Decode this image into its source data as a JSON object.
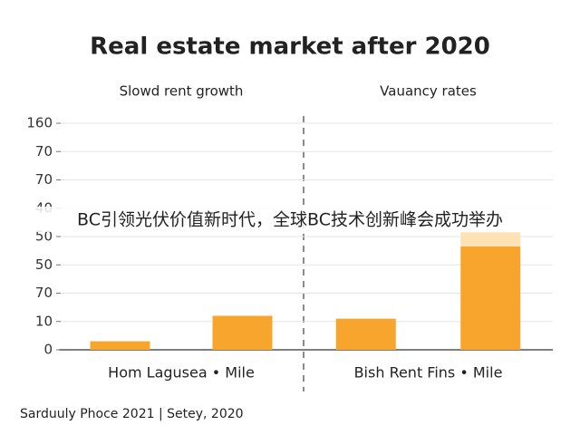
{
  "chart_data": {
    "type": "bar",
    "title": "Real estate market after 2020",
    "ylim": [
      0,
      160
    ],
    "yticks": [
      0,
      {
        "value": 20,
        "label": "10"
      },
      {
        "value": 40,
        "label": "70"
      },
      {
        "value": 60,
        "label": "50"
      },
      {
        "value": 80,
        "label": "50"
      },
      {
        "value": 100,
        "label": "40"
      },
      {
        "value": 120,
        "label": "70"
      },
      {
        "value": 140,
        "label": "70"
      },
      {
        "value": 160,
        "label": "160"
      }
    ],
    "grid": true,
    "panels": [
      {
        "subtitle": "Slowd rent growth",
        "xlabel": "Hom Lagusea • Mile",
        "series": [
          {
            "color": "#f7a52d",
            "values": [
              6,
              24
            ]
          }
        ]
      },
      {
        "subtitle": "Vauancy rates",
        "xlabel": "Bish Rent Fins • Mile",
        "series": [
          {
            "color": "#f7a52d",
            "values": [
              22,
              73
            ]
          },
          {
            "color": "#fde2b6",
            "values": [
              null,
              10
            ]
          }
        ]
      }
    ],
    "source": "Sarduuly Phoce 2021  |  Setey, 2020",
    "overlay": "BC引领光伏价值新时代，全球BC技术创新峰会成功举办"
  }
}
